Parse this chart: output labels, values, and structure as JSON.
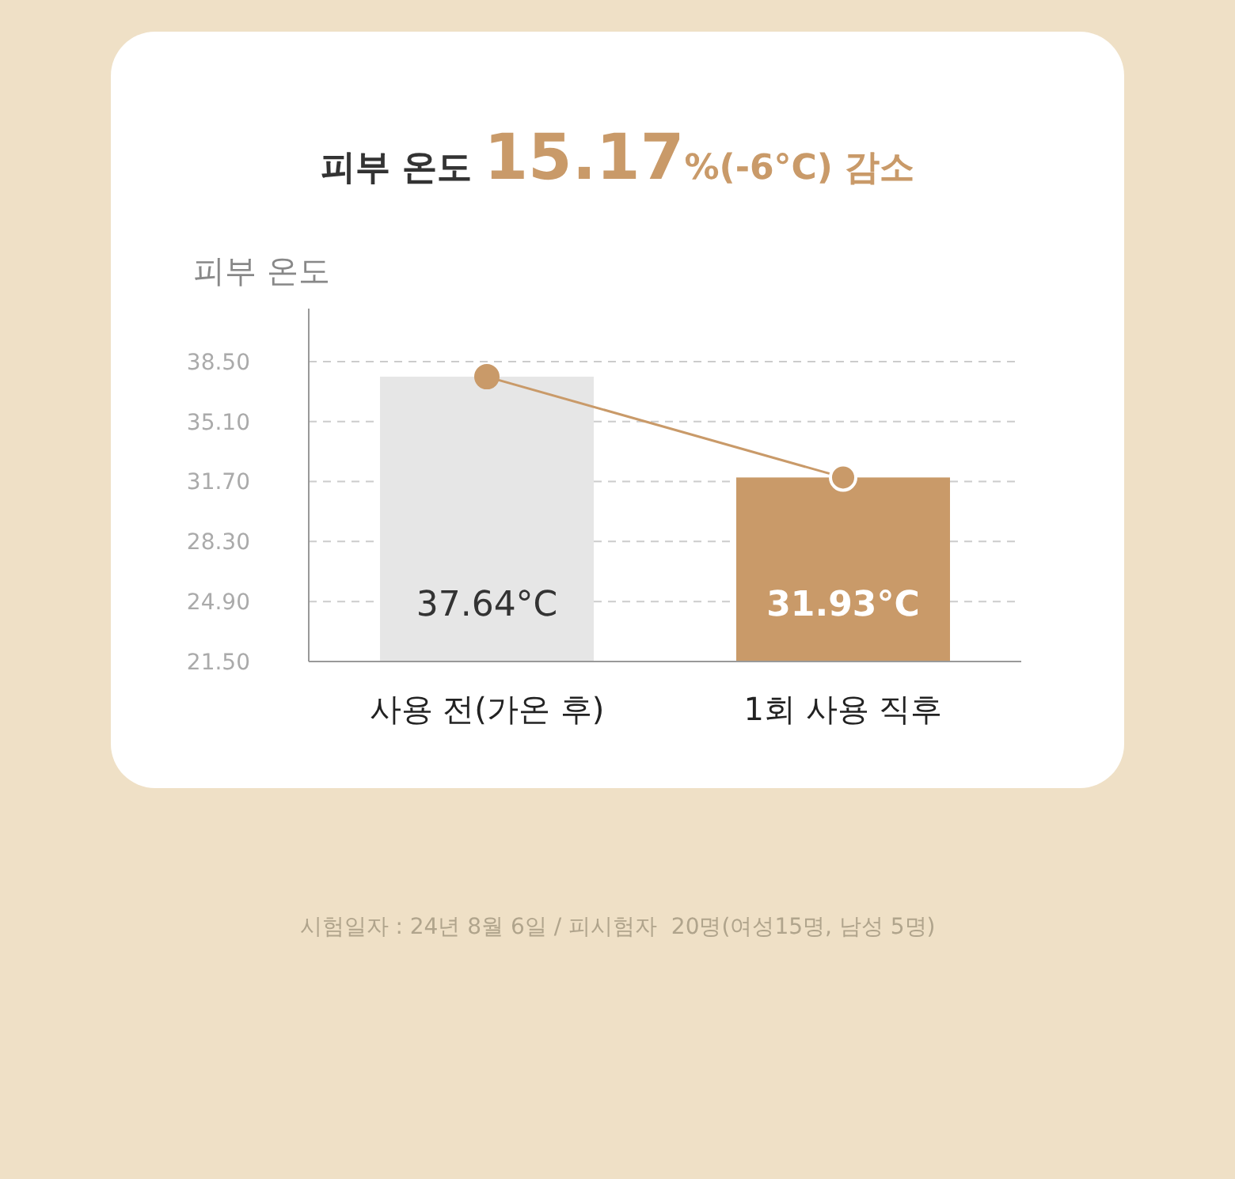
{
  "chart_data": {
    "type": "bar",
    "title": "피부 온도 15.17%(-6°C) 감소",
    "ylabel": "피부 온도",
    "categories": [
      "사용 전(가온 후)",
      "1회 사용 직후"
    ],
    "series": [
      {
        "colors": [
          "#e6e6e6",
          "#c99a69"
        ],
        "values": [
          37.64,
          31.93
        ],
        "value_labels": [
          "37.64°C",
          "31.93°C"
        ]
      },
      {
        "type": "line",
        "color": "#c99a69",
        "values": [
          37.64,
          31.93
        ],
        "marker": "circle"
      }
    ],
    "ylim": [
      21.5,
      41.5
    ],
    "yticks": [
      {
        "value": 21.5,
        "label": "21.50"
      },
      {
        "value": 24.9,
        "label": "24.90"
      },
      {
        "value": 28.3,
        "label": "28.30"
      },
      {
        "value": 31.7,
        "label": "31.70"
      },
      {
        "value": 35.1,
        "label": "35.10"
      },
      {
        "value": 38.5,
        "label": "38.50"
      }
    ],
    "grid": "y",
    "annotations": [
      "시험일자 : 24년 8월 6일 / 피시험자  20명(여성15명, 남성 5명)"
    ]
  }
}
